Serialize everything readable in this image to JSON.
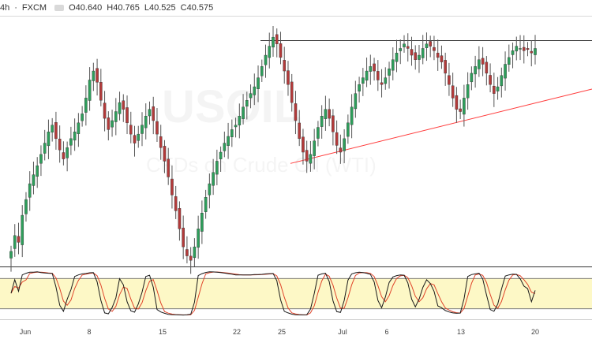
{
  "header": {
    "interval": "4h",
    "separator": "·",
    "source": "FXCM",
    "ohlc": [
      "O40.640",
      "H40.765",
      "L40.525",
      "C40.575"
    ]
  },
  "watermark": {
    "symbol": "USOIL",
    "description": "CFDs on Crude Oil (WTI)"
  },
  "chart_data": {
    "type": "candlestick",
    "x_ticks": [
      "Jun",
      "8",
      "15",
      "22",
      "25",
      "Jul",
      "6",
      "13",
      "20"
    ],
    "up_color": "#2e9e5b",
    "down_color": "#b33a3a",
    "price_range": [
      31.0,
      41.7
    ],
    "candles_close_approx": [
      31.6,
      32.3,
      32.0,
      33.2,
      33.9,
      34.6,
      35.0,
      35.4,
      35.9,
      36.4,
      36.9,
      37.2,
      36.6,
      36.1,
      35.7,
      36.2,
      36.6,
      36.9,
      37.3,
      37.7,
      38.4,
      39.2,
      39.6,
      39.1,
      38.3,
      37.5,
      37.0,
      37.4,
      37.8,
      38.2,
      37.9,
      37.3,
      36.8,
      36.4,
      36.8,
      37.2,
      37.6,
      37.9,
      37.4,
      36.8,
      36.2,
      35.6,
      34.9,
      34.1,
      33.4,
      32.6,
      31.8,
      31.4,
      31.2,
      31.8,
      32.6,
      33.3,
      34.0,
      34.6,
      35.1,
      35.6,
      36.0,
      36.4,
      36.7,
      37.0,
      37.2,
      37.6,
      38.0,
      38.3,
      38.6,
      38.9,
      39.3,
      39.8,
      40.3,
      40.7,
      41.1,
      40.8,
      40.2,
      39.6,
      39.0,
      38.2,
      37.4,
      36.6,
      36.0,
      35.6,
      35.9,
      36.5,
      37.1,
      37.6,
      37.9,
      37.5,
      36.9,
      36.3,
      36.0,
      36.6,
      37.3,
      38.0,
      38.6,
      39.0,
      39.3,
      39.6,
      39.8,
      39.6,
      39.2,
      39.0,
      39.3,
      39.7,
      40.1,
      40.4,
      40.6,
      40.8,
      40.6,
      40.3,
      40.1,
      40.3,
      40.6,
      40.8,
      40.7,
      40.5,
      40.2,
      40.0,
      39.5,
      39.0,
      38.4,
      37.9,
      37.8,
      38.4,
      39.0,
      39.5,
      39.8,
      40.1,
      39.9,
      39.5,
      39.0,
      38.6,
      38.9,
      39.4,
      39.9,
      40.2,
      40.5,
      40.7,
      40.6,
      40.5,
      40.55,
      40.4,
      40.6
    ],
    "trendlines": [
      {
        "kind": "horizontal",
        "color": "#333333",
        "price": 40.95
      },
      {
        "kind": "ascending",
        "color": "#ff3b3b",
        "from_price": 35.5,
        "to_price": 38.8
      }
    ],
    "oscillator": {
      "type": "stochastic",
      "band_upper": 80,
      "band_lower": 20,
      "band_color": "#fdf8c6",
      "k_color": "#1a1a1a",
      "d_color": "#e0442a"
    }
  }
}
